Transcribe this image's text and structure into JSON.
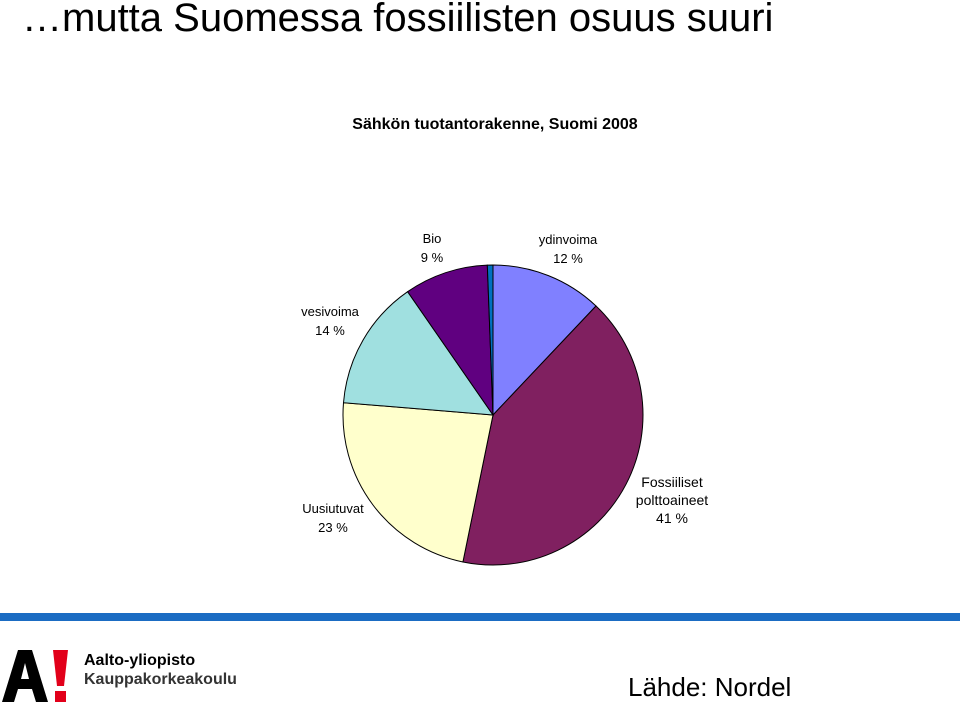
{
  "slide": {
    "title": "…mutta Suomessa fossiilisten osuus suuri",
    "source": "Lähde: Nordel"
  },
  "branding": {
    "logo_text": "A!",
    "org_line1": "Aalto-yliopisto",
    "org_line2": "Kauppakorkeakoulu",
    "logo_accent_color": "#e2001a",
    "rule_color": "#1b6cc3"
  },
  "chart_data": {
    "type": "pie",
    "title": "Sähkön tuotantorakenne, Suomi 2008",
    "slices": [
      {
        "label": [
          "ydinvoima",
          "12 %"
        ],
        "value": 12,
        "color": "#8080ff"
      },
      {
        "label": [
          "Fossiiliset",
          "polttoaineet",
          "41 %"
        ],
        "value": 41,
        "color": "#802060"
      },
      {
        "label": [
          "Uusiutuvat",
          "23 %"
        ],
        "value": 23,
        "color": "#ffffcc"
      },
      {
        "label": [
          "vesivoima",
          "14 %"
        ],
        "value": 14,
        "color": "#a0e0e0"
      },
      {
        "label": [
          "Bio",
          "9 %"
        ],
        "value": 9,
        "color": "#600080"
      },
      {
        "label": [],
        "value": 0.6,
        "color": "#0070c0"
      }
    ]
  }
}
